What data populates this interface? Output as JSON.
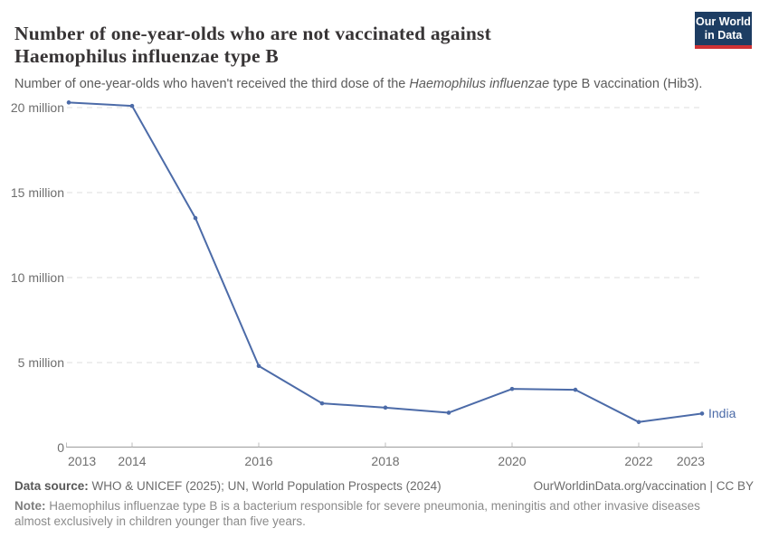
{
  "header": {
    "title_line1": "Number of one-year-olds who are not vaccinated against",
    "title_line2": "Haemophilus influenzae type B",
    "subtitle_before": "Number of one-year-olds who haven't received the third dose of the ",
    "subtitle_italic": "Haemophilus influenzae",
    "subtitle_after": " type B vaccination (Hib3).",
    "logo": {
      "line1": "Our World",
      "line2": "in Data",
      "bg_color": "#1d3d63",
      "bar_color": "#cf3235"
    }
  },
  "chart_data": {
    "type": "line",
    "title": "Number of one-year-olds who are not vaccinated against Haemophilus influenzae type B",
    "subtitle": "Number of one-year-olds who haven't received the third dose of the Haemophilus influenzae type B vaccination (Hib3).",
    "unit": "million people",
    "x": [
      2013,
      2014,
      2015,
      2016,
      2017,
      2018,
      2019,
      2020,
      2021,
      2022,
      2023
    ],
    "series": [
      {
        "name": "India",
        "values_millions": [
          20.3,
          20.1,
          13.5,
          4.8,
          2.6,
          2.35,
          2.05,
          3.45,
          3.4,
          1.5,
          2.0
        ]
      }
    ],
    "ylim_millions": [
      0,
      21
    ],
    "yticks": [
      {
        "v": 0,
        "label": "0"
      },
      {
        "v": 5,
        "label": "5 million"
      },
      {
        "v": 10,
        "label": "10 million"
      },
      {
        "v": 15,
        "label": "15 million"
      },
      {
        "v": 20,
        "label": "20 million"
      }
    ],
    "xtick_years": [
      2013,
      2014,
      2016,
      2018,
      2020,
      2022,
      2023
    ],
    "grid": "dashed-horizontal",
    "legend_position": "end-of-line-label",
    "line_color": "#4c6ba8",
    "gridline_color": "#dcdcdc",
    "axis_color": "#9c9c9c",
    "tick_label_color": "#6e6e6e"
  },
  "footer": {
    "source_label": "Data source:",
    "source_text": "WHO & UNICEF (2025); UN, World Population Prospects (2024)",
    "link_text": "OurWorldinData.org/vaccination | CC BY",
    "note_label": "Note:",
    "note_text": "Haemophilus influenzae type B is a bacterium responsible for severe pneumonia, meningitis and other invasive diseases almost exclusively in children younger than five years."
  }
}
